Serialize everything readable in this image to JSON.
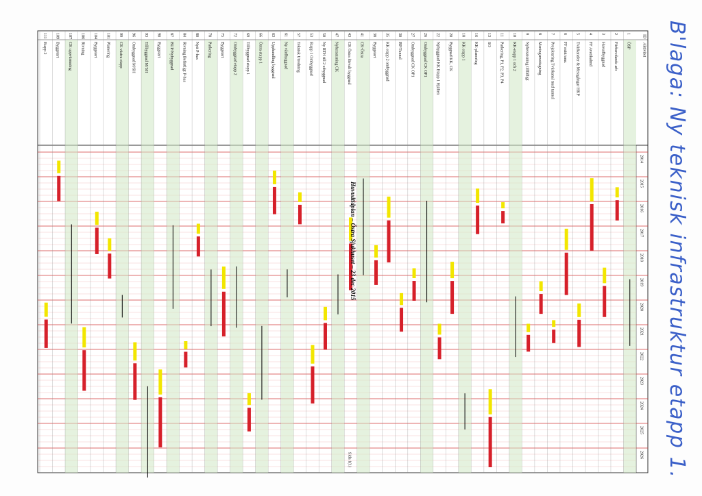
{
  "annotation": "B'laga: Ny teknisk infrastruktur etapp 1.",
  "header": {
    "title": "Huvudtidplan – Östra Sjukhuset – 23 dec 2015",
    "id_label": "ID",
    "name_label": "Aktivitet"
  },
  "years": [
    "2014",
    "2015",
    "2016",
    "2017",
    "2018",
    "2019",
    "2020",
    "2021",
    "2022",
    "2023",
    "2024",
    "2025",
    "2026"
  ],
  "rows": [
    {
      "id": "1",
      "name": "ÖSP",
      "group": true
    },
    {
      "id": "2",
      "name": "Förberedande arb",
      "group": false
    },
    {
      "id": "3",
      "name": "Huvudbyggnad",
      "group": false
    },
    {
      "id": "4",
      "name": "FF Avetikalmd",
      "group": false
    },
    {
      "id": "5",
      "name": "Tvärkanaler & Metagångar HKP",
      "group": false
    },
    {
      "id": "6",
      "name": "FF mätt/omr.",
      "group": false
    },
    {
      "id": "7",
      "name": "Projektering Tvärkanal med tunnel",
      "group": false
    },
    {
      "id": "8",
      "name": "Meningsmottagning",
      "group": false
    },
    {
      "id": "9",
      "name": "Nyhetsatsning tillfälligt",
      "group": false
    },
    {
      "id": "10",
      "name": "KK-etapp 1 och 2",
      "group": true
    },
    {
      "id": "11",
      "name": "Parkering, P1, P2, P3, P4",
      "group": false
    },
    {
      "id": "13",
      "name": "SO",
      "group": false
    },
    {
      "id": "16",
      "name": "KK-planering",
      "group": false
    },
    {
      "id": "18",
      "name": "KK etapp 1",
      "group": true
    },
    {
      "id": "20",
      "name": "Byggnad KK, CK",
      "group": false
    },
    {
      "id": "22",
      "name": "Nybyggnad KK Etapp 1 Hjälten",
      "group": false
    },
    {
      "id": "26",
      "name": "Ombyggnad CK OP1",
      "group": true
    },
    {
      "id": "27",
      "name": "Ombyggnad CK OP1",
      "group": false
    },
    {
      "id": "30",
      "name": "BP/Tunnel",
      "group": false
    },
    {
      "id": "35",
      "name": "KK etapp 2 ombyggnad",
      "group": false
    },
    {
      "id": "38",
      "name": "Byggstart",
      "group": false
    },
    {
      "id": "41",
      "name": "CK-Östra",
      "group": true
    },
    {
      "id": "43",
      "name": "CK Östra förvalt byggnad",
      "group": false
    },
    {
      "id": "47",
      "name": "Nyhetsatsning CK",
      "group": true
    },
    {
      "id": "50",
      "name": "Ny RTH till 2 utbyggnad",
      "group": false
    },
    {
      "id": "53",
      "name": "Etapp 1 Ombyggnad",
      "group": false
    },
    {
      "id": "57",
      "name": "Teknisk Utredning",
      "group": false
    },
    {
      "id": "61",
      "name": "Ny vårdbyggnad",
      "group": true
    },
    {
      "id": "63",
      "name": "Upphandling byggnad",
      "group": false
    },
    {
      "id": "66",
      "name": "Östra etapp 1",
      "group": true
    },
    {
      "id": "69",
      "name": "Tillbyggnad etapp 1",
      "group": false
    },
    {
      "id": "72",
      "name": "Ombyggnad etapp 2",
      "group": true
    },
    {
      "id": "75",
      "name": "Byggstart",
      "group": false
    },
    {
      "id": "78",
      "name": "Parkering",
      "group": true
    },
    {
      "id": "80",
      "name": "Nytt P-hus",
      "group": false
    },
    {
      "id": "84",
      "name": "Rivning Befintligt P-hus",
      "group": false
    },
    {
      "id": "87",
      "name": "BUP/Nybyggnad",
      "group": true
    },
    {
      "id": "90",
      "name": "Byggstart",
      "group": false
    },
    {
      "id": "93",
      "name": "Tillbyggnad M/SH",
      "group": true
    },
    {
      "id": "96",
      "name": "Ombyggnad M/SH",
      "group": false
    },
    {
      "id": "99",
      "name": "CK västra etapp",
      "group": true
    },
    {
      "id": "101",
      "name": "Planering",
      "group": false
    },
    {
      "id": "104",
      "name": "Byggstart",
      "group": false
    },
    {
      "id": "106",
      "name": "Rivning",
      "group": false
    },
    {
      "id": "107",
      "name": "CK uppvärmning",
      "group": true
    },
    {
      "id": "109",
      "name": "Byggstart",
      "group": false
    },
    {
      "id": "111",
      "name": "Etapp 2",
      "group": false
    }
  ],
  "footer": "Sida 1(1)"
}
